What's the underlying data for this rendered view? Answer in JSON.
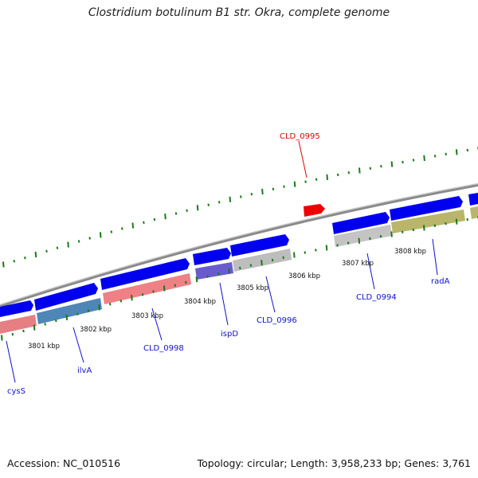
{
  "title": "Clostridium botulinum B1 str. Okra, complete genome",
  "footer": {
    "accession": "Accession: NC_010516",
    "summary": "Topology: circular; Length: 3,958,233 bp; Genes: 3,761"
  },
  "colors": {
    "backbone": "#8a8a8a",
    "tick": "#1a7a1a",
    "cds_forward": "#0000ee",
    "label_blue": "#1010cc",
    "label_red": "#dd0000",
    "highlight": "#ee0000"
  },
  "kbp_labels": [
    "3801 kbp",
    "3802 kbp",
    "3803 kbp",
    "3804 kbp",
    "3805 kbp",
    "3806 kbp",
    "3807 kbp",
    "3808 kbp"
  ],
  "gene_labels": [
    {
      "name": "cysS",
      "color": "blue"
    },
    {
      "name": "ilvA",
      "color": "blue"
    },
    {
      "name": "CLD_0998",
      "color": "blue"
    },
    {
      "name": "ispD",
      "color": "blue"
    },
    {
      "name": "CLD_0996",
      "color": "blue"
    },
    {
      "name": "CLD_0995",
      "color": "red"
    },
    {
      "name": "CLD_0994",
      "color": "blue"
    },
    {
      "name": "radA",
      "color": "blue"
    }
  ]
}
